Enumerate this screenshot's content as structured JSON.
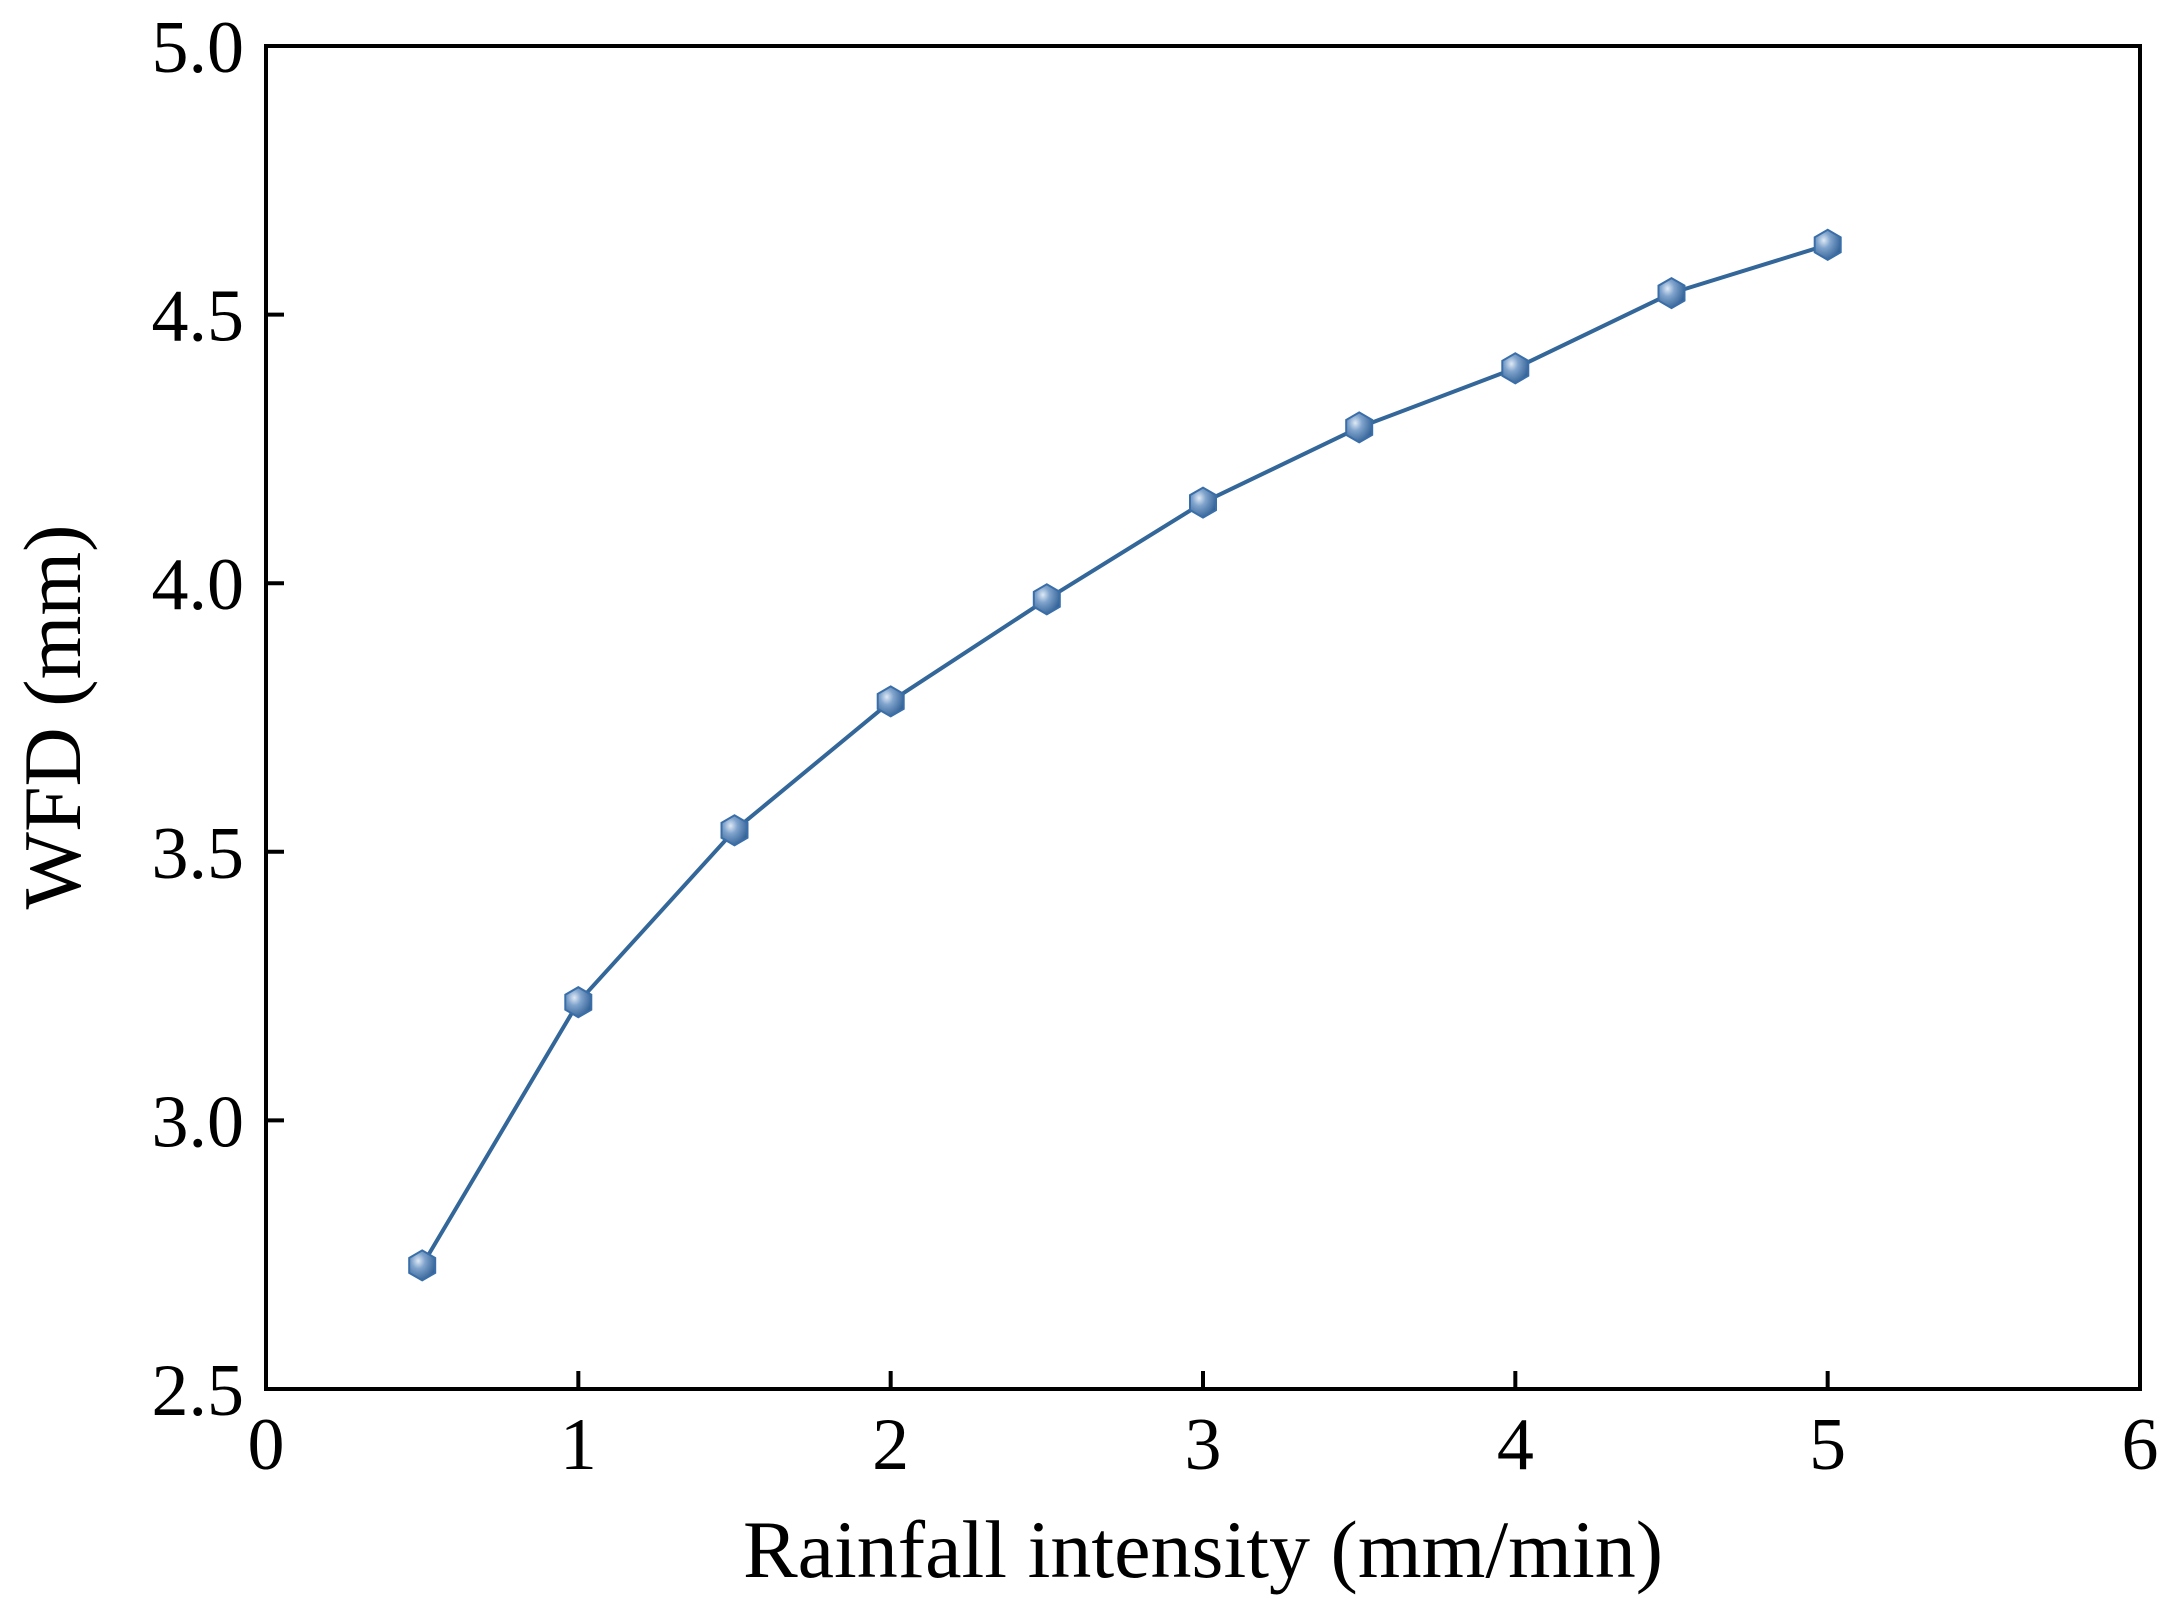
{
  "chart_data": {
    "type": "line",
    "title": "",
    "xlabel": "Rainfall intensity (mm/min)",
    "ylabel": "WFD (mm)",
    "xlim": [
      0,
      6
    ],
    "ylim": [
      2.5,
      5.0
    ],
    "xticks": [
      0,
      1,
      2,
      3,
      4,
      5,
      6
    ],
    "xtick_labels": [
      "0",
      "1",
      "2",
      "3",
      "4",
      "5",
      "6"
    ],
    "yticks": [
      2.5,
      3.0,
      3.5,
      4.0,
      4.5,
      5.0
    ],
    "ytick_labels": [
      "2.5",
      "3.0",
      "3.5",
      "4.0",
      "4.5",
      "5.0"
    ],
    "grid": false,
    "series": [
      {
        "name": "WFD",
        "color": "#336699",
        "marker_color": "#3a6ea8",
        "x": [
          0.5,
          1.0,
          1.5,
          2.0,
          2.5,
          3.0,
          3.5,
          4.0,
          4.5,
          5.0
        ],
        "y": [
          2.73,
          3.22,
          3.54,
          3.78,
          3.97,
          4.15,
          4.29,
          4.4,
          4.54,
          4.63
        ]
      }
    ]
  }
}
